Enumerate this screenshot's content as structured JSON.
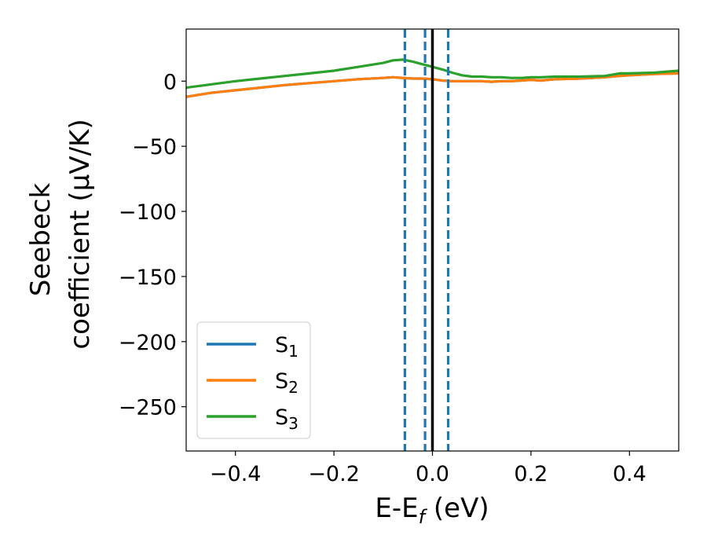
{
  "chart_data": {
    "type": "line",
    "title": "",
    "xlabel": "E-E",
    "xlabel_sub": "f",
    "xlabel_unit": " (eV)",
    "ylabel_line1": "Seebeck",
    "ylabel_line2": "coefficient  (μV/K)",
    "xlim": [
      -0.5,
      0.5
    ],
    "ylim": [
      -284,
      40
    ],
    "x_ticks": [
      -0.4,
      -0.2,
      0.0,
      0.2,
      0.4
    ],
    "x_tick_labels": [
      "−0.4",
      "−0.2",
      "0.0",
      "0.2",
      "0.4"
    ],
    "y_ticks": [
      0,
      -50,
      -100,
      -150,
      -200,
      -250
    ],
    "y_tick_labels": [
      "0",
      "−50",
      "−100",
      "−150",
      "−200",
      "−250"
    ],
    "grid": false,
    "legend_position": "lower-left",
    "series": [
      {
        "name": "S",
        "sub": "1",
        "color": "#1f77b4",
        "x": [
          -0.5,
          -0.45,
          -0.4,
          -0.35,
          -0.3,
          -0.25,
          -0.2,
          -0.15,
          -0.1,
          -0.08,
          -0.06,
          -0.04,
          -0.02,
          0.0,
          0.02,
          0.04,
          0.06,
          0.08,
          0.1,
          0.12,
          0.14,
          0.16,
          0.18,
          0.2,
          0.22,
          0.25,
          0.3,
          0.35,
          0.38,
          0.4,
          0.45,
          0.5
        ],
        "y": [
          -12,
          -9,
          -7,
          -5,
          -3,
          -1.5,
          0,
          1.5,
          2.5,
          3,
          2.5,
          2,
          2,
          1.5,
          0.5,
          0,
          0,
          0,
          0,
          -0.5,
          0,
          0,
          0.5,
          1,
          0.5,
          1.5,
          2,
          3,
          4,
          4.5,
          5.5,
          6
        ]
      },
      {
        "name": "S",
        "sub": "2",
        "color": "#ff7f0e",
        "x": [
          -0.5,
          -0.45,
          -0.4,
          -0.35,
          -0.3,
          -0.25,
          -0.2,
          -0.15,
          -0.1,
          -0.08,
          -0.06,
          -0.04,
          -0.02,
          0.0,
          0.02,
          0.04,
          0.06,
          0.08,
          0.1,
          0.12,
          0.14,
          0.16,
          0.18,
          0.2,
          0.22,
          0.25,
          0.3,
          0.35,
          0.38,
          0.4,
          0.45,
          0.5
        ],
        "y": [
          -12,
          -9,
          -7,
          -5,
          -3,
          -1.5,
          0,
          1.5,
          2.5,
          3,
          2.5,
          2,
          2,
          1.5,
          0.5,
          0,
          0,
          0,
          0,
          -0.5,
          0,
          0,
          0.5,
          1,
          0.5,
          1.5,
          2,
          3,
          4,
          4.5,
          5.5,
          6
        ]
      },
      {
        "name": "S",
        "sub": "3",
        "color": "#2ca02c",
        "x": [
          -0.5,
          -0.45,
          -0.4,
          -0.35,
          -0.3,
          -0.25,
          -0.2,
          -0.15,
          -0.1,
          -0.08,
          -0.06,
          -0.04,
          -0.02,
          0.0,
          0.02,
          0.04,
          0.06,
          0.08,
          0.1,
          0.12,
          0.14,
          0.16,
          0.18,
          0.2,
          0.22,
          0.25,
          0.3,
          0.35,
          0.38,
          0.4,
          0.45,
          0.5
        ],
        "y": [
          -5,
          -2.5,
          0,
          2,
          4,
          6,
          8,
          11,
          14,
          16,
          16.5,
          15,
          13,
          11,
          9,
          6.5,
          4.5,
          3.5,
          3.5,
          3,
          3,
          2.5,
          2.5,
          3,
          3,
          3.5,
          3.5,
          4,
          6,
          6,
          6.5,
          8
        ]
      }
    ],
    "vlines": [
      {
        "x": -0.056,
        "style": "dashed",
        "color": "#1f77b4"
      },
      {
        "x": -0.015,
        "style": "dashed",
        "color": "#1f77b4"
      },
      {
        "x": 0.032,
        "style": "dashed",
        "color": "#1f77b4"
      },
      {
        "x": 0.0,
        "style": "solid",
        "color": "#000000"
      }
    ]
  }
}
